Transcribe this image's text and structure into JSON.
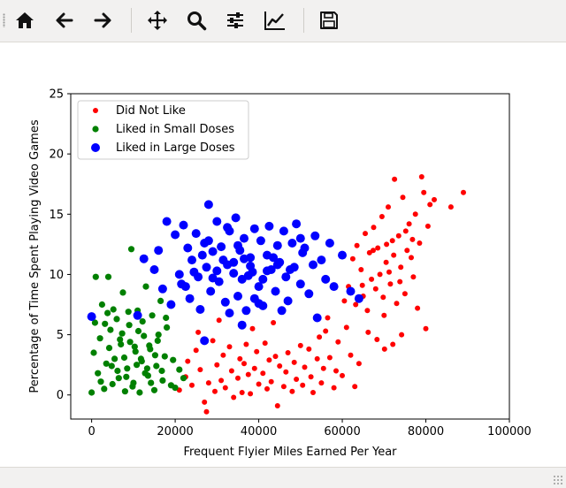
{
  "toolbar": {
    "icons": [
      "home-icon",
      "back-icon",
      "forward-icon",
      "pan-icon",
      "zoom-icon",
      "configure-subplots-icon",
      "edit-axis-icon",
      "save-icon"
    ]
  },
  "chart_data": {
    "type": "scatter",
    "title": "",
    "xlabel": "Frequent Flyier Miles Earned Per Year",
    "ylabel": "Percentage of Time Spent Playing Video Games",
    "xlim": [
      -5000,
      100000
    ],
    "ylim": [
      -2,
      25
    ],
    "xticks": [
      0,
      20000,
      40000,
      60000,
      80000,
      100000
    ],
    "yticks": [
      0,
      5,
      10,
      15,
      20,
      25
    ],
    "grid": false,
    "legend": "top-left",
    "series": [
      {
        "name": "Did Not Like",
        "color": "#ff0000",
        "size": 3,
        "points": [
          [
            21000,
            0.4
          ],
          [
            22500,
            1.5
          ],
          [
            23000,
            2.8
          ],
          [
            24000,
            0.8
          ],
          [
            25000,
            3.7
          ],
          [
            26000,
            2.1
          ],
          [
            27000,
            -0.6
          ],
          [
            27500,
            -1.4
          ],
          [
            28000,
            1.0
          ],
          [
            29000,
            4.5
          ],
          [
            29500,
            0.3
          ],
          [
            30000,
            2.5
          ],
          [
            31000,
            1.2
          ],
          [
            31500,
            3.3
          ],
          [
            32000,
            0.6
          ],
          [
            33000,
            4.0
          ],
          [
            33500,
            2.0
          ],
          [
            34000,
            -0.2
          ],
          [
            35000,
            1.4
          ],
          [
            35500,
            3.0
          ],
          [
            36000,
            0.2
          ],
          [
            36500,
            2.6
          ],
          [
            37000,
            4.2
          ],
          [
            37500,
            1.7
          ],
          [
            38000,
            0.1
          ],
          [
            39000,
            2.2
          ],
          [
            39500,
            3.6
          ],
          [
            40000,
            0.9
          ],
          [
            41000,
            1.8
          ],
          [
            41500,
            4.3
          ],
          [
            42000,
            0.5
          ],
          [
            42500,
            2.9
          ],
          [
            43000,
            1.1
          ],
          [
            44000,
            3.2
          ],
          [
            44500,
            -0.9
          ],
          [
            45000,
            2.4
          ],
          [
            46000,
            0.7
          ],
          [
            46500,
            1.9
          ],
          [
            47000,
            3.5
          ],
          [
            48000,
            0.3
          ],
          [
            48500,
            2.7
          ],
          [
            49000,
            1.3
          ],
          [
            50000,
            4.1
          ],
          [
            50500,
            0.8
          ],
          [
            51000,
            2.3
          ],
          [
            52000,
            3.8
          ],
          [
            52500,
            1.5
          ],
          [
            53000,
            0.2
          ],
          [
            54000,
            3.0
          ],
          [
            54500,
            4.8
          ],
          [
            55000,
            1.0
          ],
          [
            55500,
            2.2
          ],
          [
            56000,
            5.3
          ],
          [
            57000,
            3.1
          ],
          [
            58000,
            0.6
          ],
          [
            58500,
            2.0
          ],
          [
            59000,
            4.4
          ],
          [
            60000,
            1.6
          ],
          [
            61000,
            5.6
          ],
          [
            62000,
            3.3
          ],
          [
            63000,
            0.7
          ],
          [
            64000,
            2.6
          ],
          [
            38500,
            5.5
          ],
          [
            30500,
            6.2
          ],
          [
            43500,
            6.0
          ],
          [
            25500,
            5.2
          ],
          [
            56500,
            6.4
          ],
          [
            60500,
            7.8
          ],
          [
            61500,
            9.0
          ],
          [
            62500,
            11.3
          ],
          [
            63500,
            12.4
          ],
          [
            64500,
            10.4
          ],
          [
            65000,
            8.2
          ],
          [
            65500,
            13.4
          ],
          [
            66000,
            7.0
          ],
          [
            66500,
            11.8
          ],
          [
            67000,
            9.6
          ],
          [
            67500,
            13.9
          ],
          [
            68000,
            8.8
          ],
          [
            68500,
            12.2
          ],
          [
            69000,
            10.0
          ],
          [
            69500,
            14.8
          ],
          [
            70000,
            6.6
          ],
          [
            70500,
            11.0
          ],
          [
            71000,
            15.6
          ],
          [
            71500,
            9.2
          ],
          [
            72000,
            12.8
          ],
          [
            72500,
            17.9
          ],
          [
            73000,
            7.6
          ],
          [
            73500,
            13.2
          ],
          [
            74000,
            10.6
          ],
          [
            74500,
            16.4
          ],
          [
            75000,
            8.4
          ],
          [
            75500,
            12.0
          ],
          [
            76000,
            14.2
          ],
          [
            76500,
            11.4
          ],
          [
            77000,
            9.8
          ],
          [
            77500,
            15.0
          ],
          [
            78000,
            7.2
          ],
          [
            78500,
            12.6
          ],
          [
            79000,
            18.1
          ],
          [
            79500,
            16.8
          ],
          [
            80000,
            5.5
          ],
          [
            80500,
            14.0
          ],
          [
            81000,
            15.8
          ],
          [
            82000,
            16.2
          ],
          [
            86000,
            15.6
          ],
          [
            89000,
            16.8
          ],
          [
            66200,
            5.2
          ],
          [
            68300,
            4.6
          ],
          [
            70100,
            3.8
          ],
          [
            72100,
            4.2
          ],
          [
            74200,
            5.0
          ],
          [
            70600,
            12.5
          ],
          [
            72300,
            11.6
          ],
          [
            73800,
            9.4
          ],
          [
            75200,
            13.6
          ],
          [
            76800,
            12.9
          ],
          [
            71200,
            10.2
          ],
          [
            69800,
            8.1
          ],
          [
            67400,
            12.0
          ],
          [
            64800,
            9.1
          ],
          [
            63200,
            7.5
          ]
        ]
      },
      {
        "name": "Liked in Small Doses",
        "color": "#008000",
        "size": 3.6,
        "points": [
          [
            0,
            0.2
          ],
          [
            500,
            3.5
          ],
          [
            800,
            6.0
          ],
          [
            1000,
            9.8
          ],
          [
            1500,
            1.8
          ],
          [
            2000,
            4.7
          ],
          [
            2500,
            7.5
          ],
          [
            3000,
            0.5
          ],
          [
            3500,
            2.6
          ],
          [
            4000,
            9.8
          ],
          [
            4500,
            5.4
          ],
          [
            5000,
            0.9
          ],
          [
            5500,
            3.0
          ],
          [
            6000,
            6.3
          ],
          [
            6500,
            1.4
          ],
          [
            7000,
            4.2
          ],
          [
            7500,
            8.5
          ],
          [
            8000,
            0.3
          ],
          [
            8500,
            2.2
          ],
          [
            9000,
            5.8
          ],
          [
            9500,
            12.1
          ],
          [
            10000,
            1.0
          ],
          [
            10500,
            3.6
          ],
          [
            11000,
            7.0
          ],
          [
            11500,
            0.2
          ],
          [
            12000,
            2.8
          ],
          [
            12500,
            4.9
          ],
          [
            13000,
            9.0
          ],
          [
            13500,
            1.6
          ],
          [
            14000,
            3.8
          ],
          [
            14500,
            6.6
          ],
          [
            15000,
            0.4
          ],
          [
            15500,
            2.4
          ],
          [
            16000,
            5.0
          ],
          [
            16500,
            7.8
          ],
          [
            17000,
            1.2
          ],
          [
            17500,
            3.2
          ],
          [
            18000,
            5.6
          ],
          [
            19000,
            0.8
          ],
          [
            19500,
            2.9
          ],
          [
            20000,
            0.6
          ],
          [
            21000,
            2.1
          ],
          [
            22000,
            1.4
          ],
          [
            3200,
            5.9
          ],
          [
            6200,
            2.0
          ],
          [
            7800,
            3.1
          ],
          [
            9200,
            4.4
          ],
          [
            10800,
            2.5
          ],
          [
            12200,
            6.1
          ],
          [
            13800,
            4.1
          ],
          [
            15200,
            3.3
          ],
          [
            5200,
            7.1
          ],
          [
            8800,
            6.9
          ],
          [
            11200,
            5.3
          ],
          [
            14200,
            1.0
          ],
          [
            16800,
            2.0
          ],
          [
            2200,
            1.1
          ],
          [
            4200,
            3.9
          ],
          [
            9800,
            0.7
          ],
          [
            12800,
            1.8
          ],
          [
            7300,
            5.1
          ],
          [
            10300,
            4.0
          ],
          [
            11800,
            3.0
          ],
          [
            13300,
            2.2
          ],
          [
            8300,
            1.5
          ],
          [
            6800,
            4.6
          ],
          [
            4800,
            2.4
          ],
          [
            3800,
            6.8
          ],
          [
            15800,
            4.5
          ],
          [
            17800,
            6.4
          ]
        ]
      },
      {
        "name": "Liked in Large Doses",
        "color": "#0000ff",
        "size": 5,
        "points": [
          [
            0,
            6.5
          ],
          [
            11000,
            6.6
          ],
          [
            12500,
            11.3
          ],
          [
            15000,
            10.4
          ],
          [
            16000,
            12.0
          ],
          [
            17000,
            8.8
          ],
          [
            18000,
            14.4
          ],
          [
            19000,
            7.5
          ],
          [
            20000,
            13.3
          ],
          [
            21000,
            10.0
          ],
          [
            21500,
            9.2
          ],
          [
            22000,
            14.1
          ],
          [
            23000,
            12.2
          ],
          [
            23500,
            8.0
          ],
          [
            24000,
            11.2
          ],
          [
            25000,
            13.4
          ],
          [
            25500,
            9.8
          ],
          [
            26000,
            7.1
          ],
          [
            27000,
            12.6
          ],
          [
            27500,
            10.6
          ],
          [
            28000,
            15.8
          ],
          [
            28500,
            8.6
          ],
          [
            29000,
            11.9
          ],
          [
            30000,
            14.4
          ],
          [
            30500,
            9.4
          ],
          [
            31000,
            12.3
          ],
          [
            32000,
            7.7
          ],
          [
            32500,
            10.8
          ],
          [
            33000,
            13.6
          ],
          [
            34000,
            11.0
          ],
          [
            34500,
            14.7
          ],
          [
            35000,
            8.2
          ],
          [
            35500,
            12.0
          ],
          [
            36000,
            9.6
          ],
          [
            36500,
            13.0
          ],
          [
            37000,
            7.0
          ],
          [
            38000,
            11.4
          ],
          [
            38500,
            10.2
          ],
          [
            39000,
            13.8
          ],
          [
            40000,
            9.0
          ],
          [
            40500,
            12.8
          ],
          [
            41000,
            7.4
          ],
          [
            42000,
            11.6
          ],
          [
            42500,
            14.0
          ],
          [
            43000,
            10.4
          ],
          [
            44000,
            8.6
          ],
          [
            44500,
            12.4
          ],
          [
            45000,
            11.0
          ],
          [
            46000,
            13.6
          ],
          [
            46500,
            9.8
          ],
          [
            47000,
            7.8
          ],
          [
            48000,
            12.6
          ],
          [
            48500,
            10.6
          ],
          [
            49000,
            14.2
          ],
          [
            50000,
            9.2
          ],
          [
            50500,
            11.8
          ],
          [
            51000,
            12.2
          ],
          [
            52000,
            8.4
          ],
          [
            53000,
            10.8
          ],
          [
            53500,
            13.2
          ],
          [
            54000,
            6.4
          ],
          [
            55000,
            11.2
          ],
          [
            56000,
            9.6
          ],
          [
            57000,
            12.6
          ],
          [
            58000,
            9.0
          ],
          [
            60000,
            11.6
          ],
          [
            62000,
            8.6
          ],
          [
            64000,
            8.0
          ],
          [
            27000,
            4.5
          ],
          [
            36000,
            5.8
          ],
          [
            40000,
            7.6
          ],
          [
            33000,
            6.8
          ],
          [
            30000,
            10.3
          ],
          [
            37500,
            9.9
          ],
          [
            42000,
            10.3
          ],
          [
            45500,
            7.0
          ],
          [
            26500,
            11.6
          ],
          [
            29000,
            9.7
          ],
          [
            34000,
            10.1
          ],
          [
            39000,
            8.0
          ],
          [
            35000,
            12.4
          ],
          [
            38000,
            10.7
          ],
          [
            41000,
            9.6
          ],
          [
            43500,
            11.4
          ],
          [
            47500,
            10.4
          ],
          [
            24500,
            10.2
          ],
          [
            31500,
            11.2
          ],
          [
            28000,
            12.8
          ],
          [
            32500,
            13.9
          ],
          [
            36500,
            11.3
          ],
          [
            44500,
            10.8
          ],
          [
            22500,
            9.0
          ],
          [
            50000,
            13.0
          ]
        ]
      }
    ]
  }
}
